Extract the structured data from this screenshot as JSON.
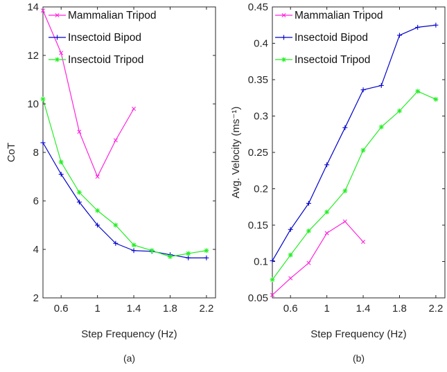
{
  "chart_data": [
    {
      "type": "line",
      "caption": "(a)",
      "xlabel": "Step Frequency (Hz)",
      "ylabel": "CoT",
      "xlim": [
        0.4,
        2.3
      ],
      "ylim": [
        2,
        14
      ],
      "xticks": [
        0.6,
        1,
        1.4,
        1.8,
        2.2
      ],
      "xtick_labels": [
        "0.6",
        "1",
        "1.4",
        "1.8",
        "2.2"
      ],
      "yticks": [
        2,
        4,
        6,
        8,
        10,
        12,
        14
      ],
      "ytick_labels": [
        "2",
        "4",
        "6",
        "8",
        "10",
        "12",
        "14"
      ],
      "grid": false,
      "legend": "top-right",
      "series": [
        {
          "name": "Mammalian Tripod",
          "color": "#ff22dd",
          "marker": "x",
          "x": [
            0.4,
            0.6,
            0.8,
            1.0,
            1.2,
            1.4
          ],
          "y": [
            13.85,
            12.1,
            8.85,
            7.0,
            8.5,
            9.8
          ]
        },
        {
          "name": "Insectoid Bipod",
          "color": "#0000cc",
          "marker": "plus",
          "x": [
            0.4,
            0.6,
            0.8,
            1.0,
            1.2,
            1.4,
            1.6,
            1.8,
            2.0,
            2.2
          ],
          "y": [
            8.4,
            7.1,
            5.95,
            5.0,
            4.25,
            3.95,
            3.92,
            3.78,
            3.65,
            3.65
          ]
        },
        {
          "name": "Insectoid Tripod",
          "color": "#22ee22",
          "marker": "star",
          "x": [
            0.4,
            0.6,
            0.8,
            1.0,
            1.2,
            1.4,
            1.6,
            1.8,
            2.0,
            2.2
          ],
          "y": [
            10.2,
            7.6,
            6.35,
            5.6,
            5.0,
            4.18,
            3.95,
            3.7,
            3.83,
            3.95
          ]
        }
      ]
    },
    {
      "type": "line",
      "caption": "(b)",
      "xlabel": "Step Frequency (Hz)",
      "ylabel": "Avg. Velocity (ms⁻¹)",
      "xlim": [
        0.4,
        2.3
      ],
      "ylim": [
        0.05,
        0.45
      ],
      "xticks": [
        0.6,
        1,
        1.4,
        1.8,
        2.2
      ],
      "xtick_labels": [
        "0.6",
        "1",
        "1.4",
        "1.8",
        "2.2"
      ],
      "yticks": [
        0.05,
        0.1,
        0.15,
        0.2,
        0.25,
        0.3,
        0.35,
        0.4,
        0.45
      ],
      "ytick_labels": [
        "0.05",
        "0.1",
        "0.15",
        "0.2",
        "0.25",
        "0.3",
        "0.35",
        "0.4",
        "0.45"
      ],
      "grid": false,
      "legend": "top-left",
      "series": [
        {
          "name": "Mammalian Tripod",
          "color": "#ff22dd",
          "marker": "x",
          "x": [
            0.4,
            0.6,
            0.8,
            1.0,
            1.2,
            1.4
          ],
          "y": [
            0.054,
            0.077,
            0.098,
            0.139,
            0.155,
            0.127
          ]
        },
        {
          "name": "Insectoid Bipod",
          "color": "#0000cc",
          "marker": "plus",
          "x": [
            0.4,
            0.6,
            0.8,
            1.0,
            1.2,
            1.4,
            1.6,
            1.8,
            2.0,
            2.2
          ],
          "y": [
            0.101,
            0.144,
            0.18,
            0.233,
            0.284,
            0.336,
            0.342,
            0.411,
            0.422,
            0.425
          ]
        },
        {
          "name": "Insectoid Tripod",
          "color": "#22ee22",
          "marker": "star",
          "x": [
            0.4,
            0.6,
            0.8,
            1.0,
            1.2,
            1.4,
            1.6,
            1.8,
            2.0,
            2.2
          ],
          "y": [
            0.075,
            0.109,
            0.142,
            0.168,
            0.197,
            0.253,
            0.285,
            0.307,
            0.334,
            0.323
          ]
        }
      ]
    }
  ]
}
